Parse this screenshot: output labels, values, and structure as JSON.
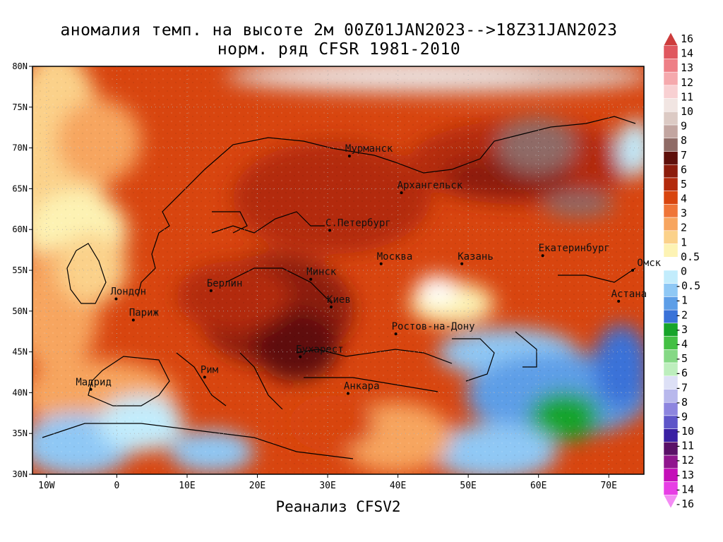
{
  "title_line1": "аномалия темп. на высоте 2м 00Z01JAN2023-->18Z31JAN2023",
  "title_line2": "норм. ряд CFSR 1981-2010",
  "footer": "Реанализ CFSV2",
  "map": {
    "lon_range": [
      -12,
      75
    ],
    "lat_range": [
      30,
      80
    ],
    "lon_ticks": [
      {
        "v": -10,
        "label": "10W"
      },
      {
        "v": 0,
        "label": "0"
      },
      {
        "v": 10,
        "label": "10E"
      },
      {
        "v": 20,
        "label": "20E"
      },
      {
        "v": 30,
        "label": "30E"
      },
      {
        "v": 40,
        "label": "40E"
      },
      {
        "v": 50,
        "label": "50E"
      },
      {
        "v": 60,
        "label": "60E"
      },
      {
        "v": 70,
        "label": "70E"
      }
    ],
    "lat_ticks": [
      {
        "v": 30,
        "label": "30N"
      },
      {
        "v": 35,
        "label": "35N"
      },
      {
        "v": 40,
        "label": "40N"
      },
      {
        "v": 45,
        "label": "45N"
      },
      {
        "v": 50,
        "label": "50N"
      },
      {
        "v": 55,
        "label": "55N"
      },
      {
        "v": 60,
        "label": "60N"
      },
      {
        "v": 65,
        "label": "65N"
      },
      {
        "v": 70,
        "label": "70N"
      },
      {
        "v": 75,
        "label": "75N"
      },
      {
        "v": 80,
        "label": "80N"
      }
    ],
    "cities": [
      {
        "name": "Мурманск",
        "lon": 33.1,
        "lat": 69.0
      },
      {
        "name": "Архангельск",
        "lon": 40.5,
        "lat": 64.5
      },
      {
        "name": "С.Петербург",
        "lon": 30.3,
        "lat": 59.9
      },
      {
        "name": "Москва",
        "lon": 37.6,
        "lat": 55.8
      },
      {
        "name": "Казань",
        "lon": 49.1,
        "lat": 55.8
      },
      {
        "name": "Екатеринбург",
        "lon": 60.6,
        "lat": 56.8
      },
      {
        "name": "Минск",
        "lon": 27.6,
        "lat": 53.9
      },
      {
        "name": "Берлин",
        "lon": 13.4,
        "lat": 52.5
      },
      {
        "name": "Лондон",
        "lon": -0.1,
        "lat": 51.5
      },
      {
        "name": "Париж",
        "lon": 2.35,
        "lat": 48.9
      },
      {
        "name": "Киев",
        "lon": 30.5,
        "lat": 50.5
      },
      {
        "name": "Омск",
        "lon": 73.4,
        "lat": 55.0
      },
      {
        "name": "Астана",
        "lon": 71.4,
        "lat": 51.2
      },
      {
        "name": "Ростов-на-Дону",
        "lon": 39.7,
        "lat": 47.2
      },
      {
        "name": "Бухарест",
        "lon": 26.1,
        "lat": 44.4
      },
      {
        "name": "Рим",
        "lon": 12.5,
        "lat": 41.9
      },
      {
        "name": "Мадрид",
        "lon": -3.7,
        "lat": 40.4
      },
      {
        "name": "Анкара",
        "lon": 32.9,
        "lat": 39.9
      }
    ]
  },
  "colorbar": {
    "levels": [
      "16",
      "14",
      "13",
      "12",
      "11",
      "10",
      "9",
      "8",
      "7",
      "6",
      "5",
      "4",
      "3",
      "2",
      "1",
      "0.5",
      "0",
      "-0.5",
      "-1",
      "-2",
      "-3",
      "-4",
      "-5",
      "-6",
      "-7",
      "-8",
      "-9",
      "-10",
      "-11",
      "-12",
      "-13",
      "-14",
      "-16"
    ],
    "colors": [
      "#cd3c3c",
      "#e0575f",
      "#ee7f86",
      "#f5a9ad",
      "#f8d0d2",
      "#f1e5e2",
      "#dccac4",
      "#c2a5a0",
      "#8f6b66",
      "#5e0f0a",
      "#8c1c0c",
      "#b32a0c",
      "#d8450f",
      "#ef7538",
      "#f7a55f",
      "#fbd18a",
      "#fdf3b4",
      "#ffffff",
      "#c2ecfc",
      "#8fc8f5",
      "#5d9ee7",
      "#3a72d8",
      "#17a42a",
      "#44c044",
      "#85d885",
      "#bdeebd",
      "#dde0f6",
      "#b8b8ec",
      "#8d85df",
      "#5e55c8",
      "#3a20a3",
      "#5a1068",
      "#90158e",
      "#c40fb8",
      "#e73ee5",
      "#f48cf4"
    ]
  }
}
